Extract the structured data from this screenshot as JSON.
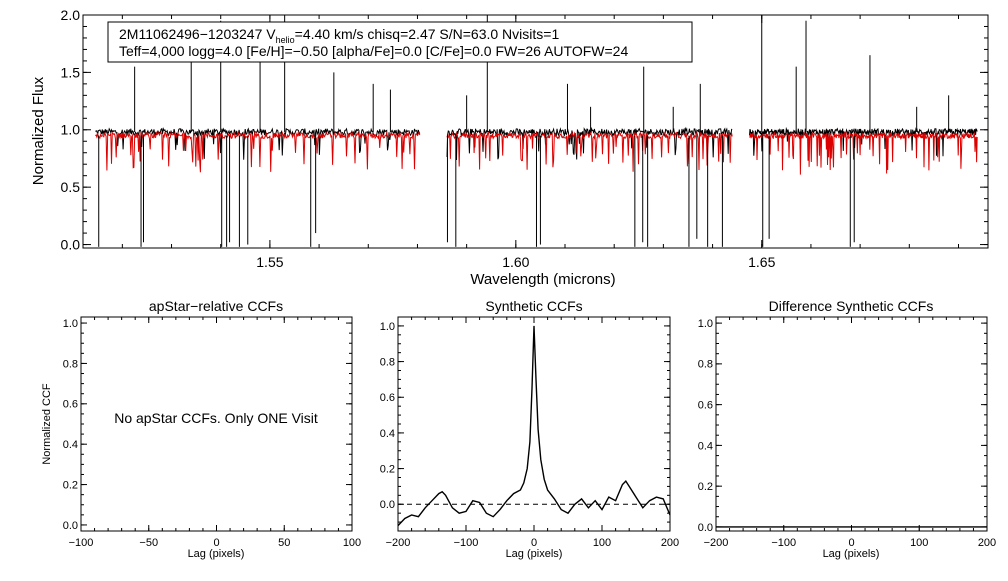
{
  "chart_data": [
    {
      "id": "spectrum",
      "type": "line",
      "title": "",
      "xlabel": "Wavelength (microns)",
      "ylabel": "Normalized Flux",
      "xlim": [
        1.512,
        1.696
      ],
      "ylim": [
        -0.03,
        2.0
      ],
      "xticks": [
        1.55,
        1.6,
        1.65
      ],
      "xtick_labels": [
        "1.55",
        "1.60",
        "1.65"
      ],
      "yticks": [
        0.0,
        0.5,
        1.0,
        1.5,
        2.0
      ],
      "ytick_labels": [
        "0.0",
        "0.5",
        "1.0",
        "1.5",
        "2.0"
      ],
      "annotation": {
        "star_id": "2M11062496−1203247",
        "v_label": "V",
        "v_sub": "helio",
        "v_value": "=4.40 km/s",
        "rest_line1": "chisq=2.47  S/N=63.0  Nvisits=1",
        "line2": "Teff=4,000 logg=4.0 [Fe/H]=−0.50 [alpha/Fe]=0.0 [C/Fe]=0.0 FW=26 AUTOFW=24"
      },
      "chips": [
        [
          1.5145,
          1.5805
        ],
        [
          1.586,
          1.644
        ],
        [
          1.6475,
          1.6938
        ]
      ],
      "series": [
        {
          "name": "Observed spectrum",
          "color": "#000000",
          "continuum": 0.98
        },
        {
          "name": "Synthetic model",
          "color": "#dd0000",
          "continuum": 0.95
        }
      ],
      "spikes_up": [
        1.5225,
        1.534,
        1.54,
        1.548,
        1.553,
        1.563,
        1.571,
        1.5745,
        1.59,
        1.5942,
        1.6105,
        1.6152,
        1.626,
        1.632,
        1.6375,
        1.65,
        1.657,
        1.659,
        1.672,
        1.6815,
        1.688
      ],
      "spikes_up_heights": [
        1.55,
        1.9,
        1.95,
        1.6,
        2.0,
        1.5,
        1.4,
        1.35,
        1.3,
        2.0,
        1.4,
        1.2,
        1.55,
        1.2,
        1.4,
        2.0,
        1.55,
        1.95,
        1.65,
        1.2,
        1.3
      ],
      "spikes_down": [
        1.5152,
        1.5238,
        1.5243,
        1.5402,
        1.5412,
        1.5418,
        1.5438,
        1.5455,
        1.5583,
        1.5593,
        1.5861,
        1.5878,
        1.6042,
        1.605,
        1.6242,
        1.6258,
        1.6268,
        1.6352,
        1.6368,
        1.639,
        1.642,
        1.6502,
        1.6515,
        1.668,
        1.6688
      ],
      "spikes_down_depths": [
        -0.02,
        -0.02,
        0.02,
        -0.02,
        -0.02,
        0.02,
        -0.02,
        0.0,
        -0.02,
        0.1,
        0.02,
        -0.02,
        -0.02,
        0.0,
        -0.02,
        0.02,
        -0.02,
        -0.02,
        0.05,
        -0.02,
        -0.02,
        -0.02,
        0.05,
        -0.02,
        0.02
      ]
    },
    {
      "id": "apstar_ccf",
      "type": "line",
      "title": "apStar−relative CCFs",
      "xlabel": "Lag (pixels)",
      "ylabel": "Normalized CCF",
      "xlim": [
        -100,
        100
      ],
      "ylim": [
        -0.03,
        1.03
      ],
      "xticks": [
        -100,
        -50,
        0,
        50,
        100
      ],
      "xtick_labels": [
        "−100",
        "−50",
        "0",
        "50",
        "100"
      ],
      "yticks": [
        0.0,
        0.2,
        0.4,
        0.6,
        0.8,
        1.0
      ],
      "ytick_labels": [
        "0.0",
        "0.2",
        "0.4",
        "0.6",
        "0.8",
        "1.0"
      ],
      "message": "No apStar CCFs.  Only ONE Visit",
      "series": []
    },
    {
      "id": "synthetic_ccf",
      "type": "line",
      "title": "Synthetic CCFs",
      "xlabel": "Lag (pixels)",
      "ylabel": "",
      "xlim": [
        -200,
        200
      ],
      "ylim": [
        -0.15,
        1.05
      ],
      "xticks": [
        -200,
        -100,
        0,
        100,
        200
      ],
      "xtick_labels": [
        "−200",
        "−100",
        "0",
        "100",
        "200"
      ],
      "yticks": [
        0.0,
        0.2,
        0.4,
        0.6,
        0.8,
        1.0
      ],
      "ytick_labels": [
        "0.0",
        "0.2",
        "0.4",
        "0.6",
        "0.8",
        "1.0"
      ],
      "zero_line": true,
      "series": [
        {
          "name": "Synthetic CCF",
          "color": "#000000",
          "x": [
            -200,
            -190,
            -180,
            -170,
            -160,
            -150,
            -140,
            -135,
            -130,
            -120,
            -110,
            -100,
            -90,
            -80,
            -70,
            -60,
            -50,
            -40,
            -30,
            -20,
            -15,
            -10,
            -6,
            -3,
            0,
            3,
            6,
            10,
            15,
            20,
            30,
            40,
            50,
            60,
            70,
            80,
            90,
            100,
            110,
            120,
            130,
            135,
            140,
            150,
            160,
            170,
            180,
            190,
            200
          ],
          "y": [
            -0.12,
            -0.08,
            -0.06,
            -0.07,
            -0.02,
            0.02,
            0.06,
            0.07,
            0.05,
            -0.02,
            -0.05,
            -0.04,
            0.02,
            0.01,
            -0.05,
            -0.07,
            -0.03,
            0.02,
            0.06,
            0.08,
            0.12,
            0.2,
            0.35,
            0.65,
            1.0,
            0.7,
            0.42,
            0.25,
            0.14,
            0.08,
            0.03,
            -0.03,
            -0.05,
            0.0,
            0.03,
            -0.02,
            0.02,
            -0.03,
            0.04,
            0.02,
            0.11,
            0.13,
            0.1,
            0.04,
            -0.02,
            0.02,
            0.04,
            0.03,
            -0.06
          ]
        }
      ]
    },
    {
      "id": "difference_ccf",
      "type": "line",
      "title": "Difference Synthetic CCFs",
      "xlabel": "Lag (pixels)",
      "ylabel": "",
      "xlim": [
        -200,
        200
      ],
      "ylim": [
        -0.02,
        1.03
      ],
      "xticks": [
        -200,
        -100,
        0,
        100,
        200
      ],
      "xtick_labels": [
        "−200",
        "−100",
        "0",
        "100",
        "200"
      ],
      "yticks": [
        0.0,
        0.2,
        0.4,
        0.6,
        0.8,
        1.0
      ],
      "ytick_labels": [
        "0.0",
        "0.2",
        "0.4",
        "0.6",
        "0.8",
        "1.0"
      ],
      "series": [
        {
          "name": "Difference CCF",
          "color": "#000000",
          "x": [
            -200,
            200
          ],
          "y": [
            0.0,
            0.0
          ]
        }
      ]
    }
  ]
}
